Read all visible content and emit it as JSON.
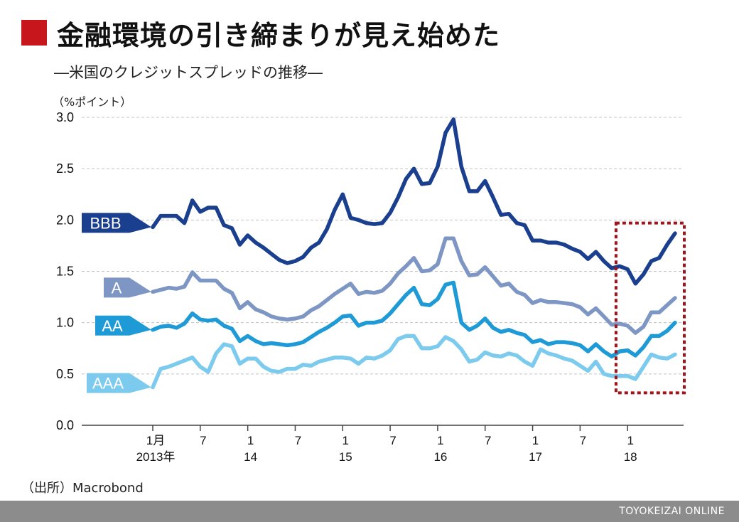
{
  "header": {
    "title": "金融環境の引き締まりが見え始めた",
    "subtitle": "―米国のクレジットスプレッドの推移―",
    "unit": "（%ポイント）"
  },
  "footer": {
    "source": "（出所）Macrobond",
    "brand": "TOYOKEIZAI ONLINE"
  },
  "colors": {
    "accent": "#c8161d",
    "BBB": "#1a3f8f",
    "A": "#7d96c4",
    "AA": "#1e9ad6",
    "AAA": "#7ccbee",
    "highlight": "#a0151c"
  },
  "chart_data": {
    "type": "line",
    "ylim": [
      0,
      3.0
    ],
    "yticks": [
      "0.0",
      "0.5",
      "1.0",
      "1.5",
      "2.0",
      "2.5",
      "3.0"
    ],
    "grid": true,
    "x_tick_labels": [
      {
        "i": 0,
        "top": "1月",
        "bottom": "2013年"
      },
      {
        "i": 6,
        "top": "7",
        "bottom": ""
      },
      {
        "i": 12,
        "top": "1",
        "bottom": "14"
      },
      {
        "i": 18,
        "top": "7",
        "bottom": ""
      },
      {
        "i": 24,
        "top": "1",
        "bottom": "15"
      },
      {
        "i": 30,
        "top": "7",
        "bottom": ""
      },
      {
        "i": 36,
        "top": "1",
        "bottom": "16"
      },
      {
        "i": 42,
        "top": "7",
        "bottom": ""
      },
      {
        "i": 48,
        "top": "1",
        "bottom": "17"
      },
      {
        "i": 54,
        "top": "7",
        "bottom": ""
      },
      {
        "i": 60,
        "top": "1",
        "bottom": "18"
      }
    ],
    "x_count": 66,
    "highlight_range": [
      58,
      66
    ],
    "highlight_ylim": [
      0.33,
      1.97
    ],
    "series": [
      {
        "name": "BBB",
        "values": [
          1.93,
          2.04,
          2.04,
          2.04,
          1.97,
          2.19,
          2.08,
          2.12,
          2.12,
          1.95,
          1.92,
          1.76,
          1.85,
          1.78,
          1.73,
          1.67,
          1.61,
          1.58,
          1.6,
          1.64,
          1.73,
          1.78,
          1.91,
          2.1,
          2.25,
          2.02,
          2.0,
          1.97,
          1.96,
          1.97,
          2.07,
          2.22,
          2.4,
          2.5,
          2.35,
          2.36,
          2.52,
          2.85,
          2.98,
          2.52,
          2.28,
          2.28,
          2.38,
          2.22,
          2.05,
          2.06,
          1.97,
          1.95,
          1.8,
          1.8,
          1.78,
          1.78,
          1.76,
          1.72,
          1.69,
          1.62,
          1.69,
          1.6,
          1.53,
          1.55,
          1.52,
          1.38,
          1.47,
          1.6,
          1.63,
          1.76,
          1.87
        ]
      },
      {
        "name": "A",
        "values": [
          1.3,
          1.32,
          1.34,
          1.33,
          1.35,
          1.49,
          1.41,
          1.41,
          1.41,
          1.33,
          1.29,
          1.14,
          1.2,
          1.13,
          1.1,
          1.06,
          1.04,
          1.03,
          1.04,
          1.06,
          1.12,
          1.16,
          1.22,
          1.28,
          1.33,
          1.38,
          1.28,
          1.3,
          1.29,
          1.31,
          1.38,
          1.48,
          1.55,
          1.63,
          1.5,
          1.51,
          1.57,
          1.82,
          1.82,
          1.6,
          1.46,
          1.47,
          1.54,
          1.45,
          1.36,
          1.38,
          1.3,
          1.27,
          1.19,
          1.22,
          1.2,
          1.2,
          1.19,
          1.18,
          1.15,
          1.08,
          1.14,
          1.06,
          0.98,
          0.99,
          0.97,
          0.9,
          0.96,
          1.1,
          1.1,
          1.17,
          1.24
        ]
      },
      {
        "name": "AA",
        "values": [
          0.93,
          0.96,
          0.97,
          0.95,
          0.99,
          1.09,
          1.03,
          1.02,
          1.03,
          0.97,
          0.94,
          0.82,
          0.87,
          0.82,
          0.79,
          0.8,
          0.79,
          0.78,
          0.79,
          0.81,
          0.86,
          0.91,
          0.95,
          1.0,
          1.06,
          1.07,
          0.97,
          1.0,
          1.0,
          1.02,
          1.09,
          1.18,
          1.27,
          1.34,
          1.18,
          1.17,
          1.23,
          1.37,
          1.39,
          1.0,
          0.93,
          0.97,
          1.04,
          0.95,
          0.91,
          0.93,
          0.9,
          0.88,
          0.81,
          0.83,
          0.79,
          0.81,
          0.81,
          0.8,
          0.78,
          0.72,
          0.79,
          0.72,
          0.67,
          0.72,
          0.73,
          0.68,
          0.76,
          0.87,
          0.87,
          0.92,
          1.0
        ]
      },
      {
        "name": "AAA",
        "values": [
          0.37,
          0.55,
          0.57,
          0.6,
          0.63,
          0.66,
          0.57,
          0.52,
          0.7,
          0.79,
          0.77,
          0.6,
          0.65,
          0.65,
          0.57,
          0.53,
          0.52,
          0.55,
          0.55,
          0.59,
          0.58,
          0.62,
          0.64,
          0.66,
          0.66,
          0.65,
          0.6,
          0.66,
          0.65,
          0.68,
          0.73,
          0.84,
          0.87,
          0.87,
          0.75,
          0.75,
          0.77,
          0.86,
          0.82,
          0.74,
          0.62,
          0.64,
          0.71,
          0.68,
          0.67,
          0.7,
          0.68,
          0.62,
          0.58,
          0.74,
          0.7,
          0.68,
          0.65,
          0.63,
          0.58,
          0.53,
          0.62,
          0.5,
          0.48,
          0.48,
          0.48,
          0.45,
          0.57,
          0.69,
          0.66,
          0.65,
          0.69
        ]
      }
    ]
  }
}
